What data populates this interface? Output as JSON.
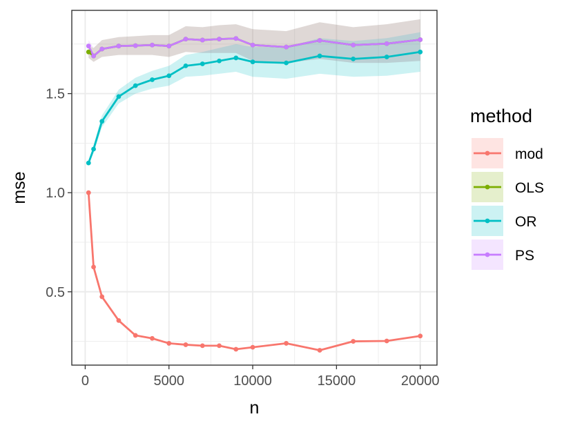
{
  "chart_data": {
    "type": "line",
    "xlabel": "n",
    "ylabel": "mse",
    "xlim": [
      -800,
      21000
    ],
    "ylim": [
      0.13,
      1.92
    ],
    "x_ticks": [
      {
        "value": 0,
        "label": "0"
      },
      {
        "value": 5000,
        "label": "5000"
      },
      {
        "value": 10000,
        "label": "10000"
      },
      {
        "value": 15000,
        "label": "15000"
      },
      {
        "value": 20000,
        "label": "20000"
      }
    ],
    "y_ticks": [
      {
        "value": 0.5,
        "label": "0.5"
      },
      {
        "value": 1.0,
        "label": "1.0"
      },
      {
        "value": 1.5,
        "label": "1.5"
      }
    ],
    "x_minor": [
      2500,
      7500,
      12500,
      17500
    ],
    "y_minor": [
      0.25,
      0.75,
      1.25,
      1.75
    ],
    "grid": true,
    "legend": {
      "title": "method",
      "position": "right"
    },
    "series": [
      {
        "name": "mod",
        "color": "#F8766D",
        "x": [
          200,
          500,
          1000,
          2000,
          3000,
          4000,
          5000,
          6000,
          7000,
          8000,
          9000,
          10000,
          12000,
          14000,
          16000,
          18000,
          20000
        ],
        "y": [
          1.0,
          0.625,
          0.475,
          0.355,
          0.28,
          0.265,
          0.24,
          0.233,
          0.228,
          0.228,
          0.21,
          0.22,
          0.24,
          0.205,
          0.25,
          0.252,
          0.277
        ],
        "band": null
      },
      {
        "name": "OLS",
        "color": "#7CAE00",
        "x": [
          200,
          500,
          1000,
          2000,
          3000,
          4000,
          5000,
          6000,
          7000,
          8000,
          9000,
          10000,
          12000,
          14000,
          16000,
          18000,
          20000
        ],
        "y": [
          1.71,
          1.69,
          1.725,
          1.74,
          1.742,
          1.745,
          1.74,
          1.775,
          1.77,
          1.775,
          1.778,
          1.745,
          1.735,
          1.768,
          1.745,
          1.752,
          1.772
        ],
        "band": {
          "lower": [
            1.68,
            1.66,
            1.685,
            1.695,
            1.695,
            1.695,
            1.685,
            1.71,
            1.705,
            1.705,
            1.705,
            1.665,
            1.655,
            1.675,
            1.655,
            1.655,
            1.665
          ],
          "upper": [
            1.74,
            1.73,
            1.77,
            1.785,
            1.79,
            1.795,
            1.795,
            1.84,
            1.835,
            1.845,
            1.85,
            1.825,
            1.815,
            1.86,
            1.835,
            1.85,
            1.875
          ]
        }
      },
      {
        "name": "OR",
        "color": "#00BFC4",
        "x": [
          200,
          500,
          1000,
          2000,
          3000,
          4000,
          5000,
          6000,
          7000,
          8000,
          9000,
          10000,
          12000,
          14000,
          16000,
          18000,
          20000
        ],
        "y": [
          1.15,
          1.22,
          1.36,
          1.485,
          1.54,
          1.57,
          1.59,
          1.64,
          1.65,
          1.665,
          1.68,
          1.66,
          1.655,
          1.69,
          1.675,
          1.685,
          1.71
        ],
        "band": {
          "lower": [
            1.14,
            1.2,
            1.33,
            1.45,
            1.5,
            1.525,
            1.54,
            1.585,
            1.59,
            1.6,
            1.61,
            1.585,
            1.575,
            1.6,
            1.585,
            1.59,
            1.61
          ],
          "upper": [
            1.16,
            1.24,
            1.39,
            1.52,
            1.58,
            1.615,
            1.64,
            1.695,
            1.71,
            1.73,
            1.75,
            1.735,
            1.735,
            1.78,
            1.765,
            1.78,
            1.81
          ]
        }
      },
      {
        "name": "PS",
        "color": "#C77CFF",
        "x": [
          200,
          500,
          1000,
          2000,
          3000,
          4000,
          5000,
          6000,
          7000,
          8000,
          9000,
          10000,
          12000,
          14000,
          16000,
          18000,
          20000
        ],
        "y": [
          1.74,
          1.69,
          1.725,
          1.74,
          1.742,
          1.745,
          1.74,
          1.775,
          1.77,
          1.775,
          1.778,
          1.745,
          1.735,
          1.768,
          1.745,
          1.752,
          1.772
        ],
        "band": {
          "lower": [
            1.68,
            1.66,
            1.685,
            1.695,
            1.695,
            1.695,
            1.685,
            1.71,
            1.705,
            1.705,
            1.705,
            1.665,
            1.655,
            1.675,
            1.655,
            1.655,
            1.665
          ],
          "upper": [
            1.77,
            1.73,
            1.77,
            1.785,
            1.79,
            1.795,
            1.795,
            1.84,
            1.835,
            1.845,
            1.85,
            1.825,
            1.815,
            1.86,
            1.835,
            1.85,
            1.875
          ]
        }
      }
    ]
  }
}
